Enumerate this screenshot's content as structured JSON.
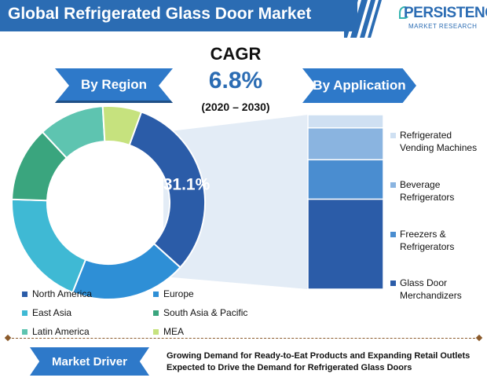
{
  "header": {
    "title": "Global Refrigerated Glass Door Market",
    "logo_brand": "PERSISTENCE",
    "logo_sub": "MARKET RESEARCH"
  },
  "cagr": {
    "label": "CAGR",
    "value": "6.8%",
    "years": "(2020 – 2030)"
  },
  "sections": {
    "region_label": "By Region",
    "application_label": "By Application"
  },
  "chart_data": [
    {
      "type": "pie",
      "title": "By Region",
      "donut": true,
      "categories": [
        "North America",
        "Europe",
        "East Asia",
        "South Asia & Pacific",
        "Latin America",
        "MEA"
      ],
      "values": [
        31.1,
        19.4,
        19.5,
        12.5,
        11.0,
        6.5
      ],
      "highlight_label": "31.1%",
      "colors": [
        "#2b5ca8",
        "#2e8fd6",
        "#3fb9d4",
        "#3aa57e",
        "#5ec4b0",
        "#c6e27e"
      ],
      "legend_order": [
        "North America",
        "Europe",
        "East Asia",
        "South Asia & Pacific",
        "Latin America",
        "MEA"
      ]
    },
    {
      "type": "bar",
      "title": "By Application",
      "stacked": true,
      "orientation": "vertical",
      "categories": [
        "Glass Door Merchandizers",
        "Freezers & Refrigerators",
        "Beverage Refrigerators",
        "Refrigerated Vending Machines"
      ],
      "values": [
        48,
        21,
        17,
        7
      ],
      "colors": [
        "#2b5ca8",
        "#4a8dd0",
        "#8ab4e0",
        "#cfe0f2"
      ]
    }
  ],
  "region_legend": [
    {
      "label": "North America",
      "color": "#2b5ca8"
    },
    {
      "label": "Europe",
      "color": "#2e8fd6"
    },
    {
      "label": "East Asia",
      "color": "#3fb9d4"
    },
    {
      "label": "South Asia & Pacific",
      "color": "#3aa57e"
    },
    {
      "label": "Latin America",
      "color": "#5ec4b0"
    },
    {
      "label": "MEA",
      "color": "#c6e27e"
    }
  ],
  "application_legend": [
    {
      "line1": "Refrigerated",
      "line2": "Vending Machines",
      "color": "#cfe0f2"
    },
    {
      "line1": "Beverage",
      "line2": "Refrigerators",
      "color": "#8ab4e0"
    },
    {
      "line1": "Freezers &",
      "line2": "Refrigerators",
      "color": "#4a8dd0"
    },
    {
      "line1": "Glass Door",
      "line2": "Merchandizers",
      "color": "#2b5ca8"
    }
  ],
  "footer": {
    "driver_label": "Market Driver",
    "driver_text": "Growing Demand for Ready-to-Eat Products and Expanding Retail Outlets Expected to Drive the Demand for Refrigerated Glass Doors"
  }
}
